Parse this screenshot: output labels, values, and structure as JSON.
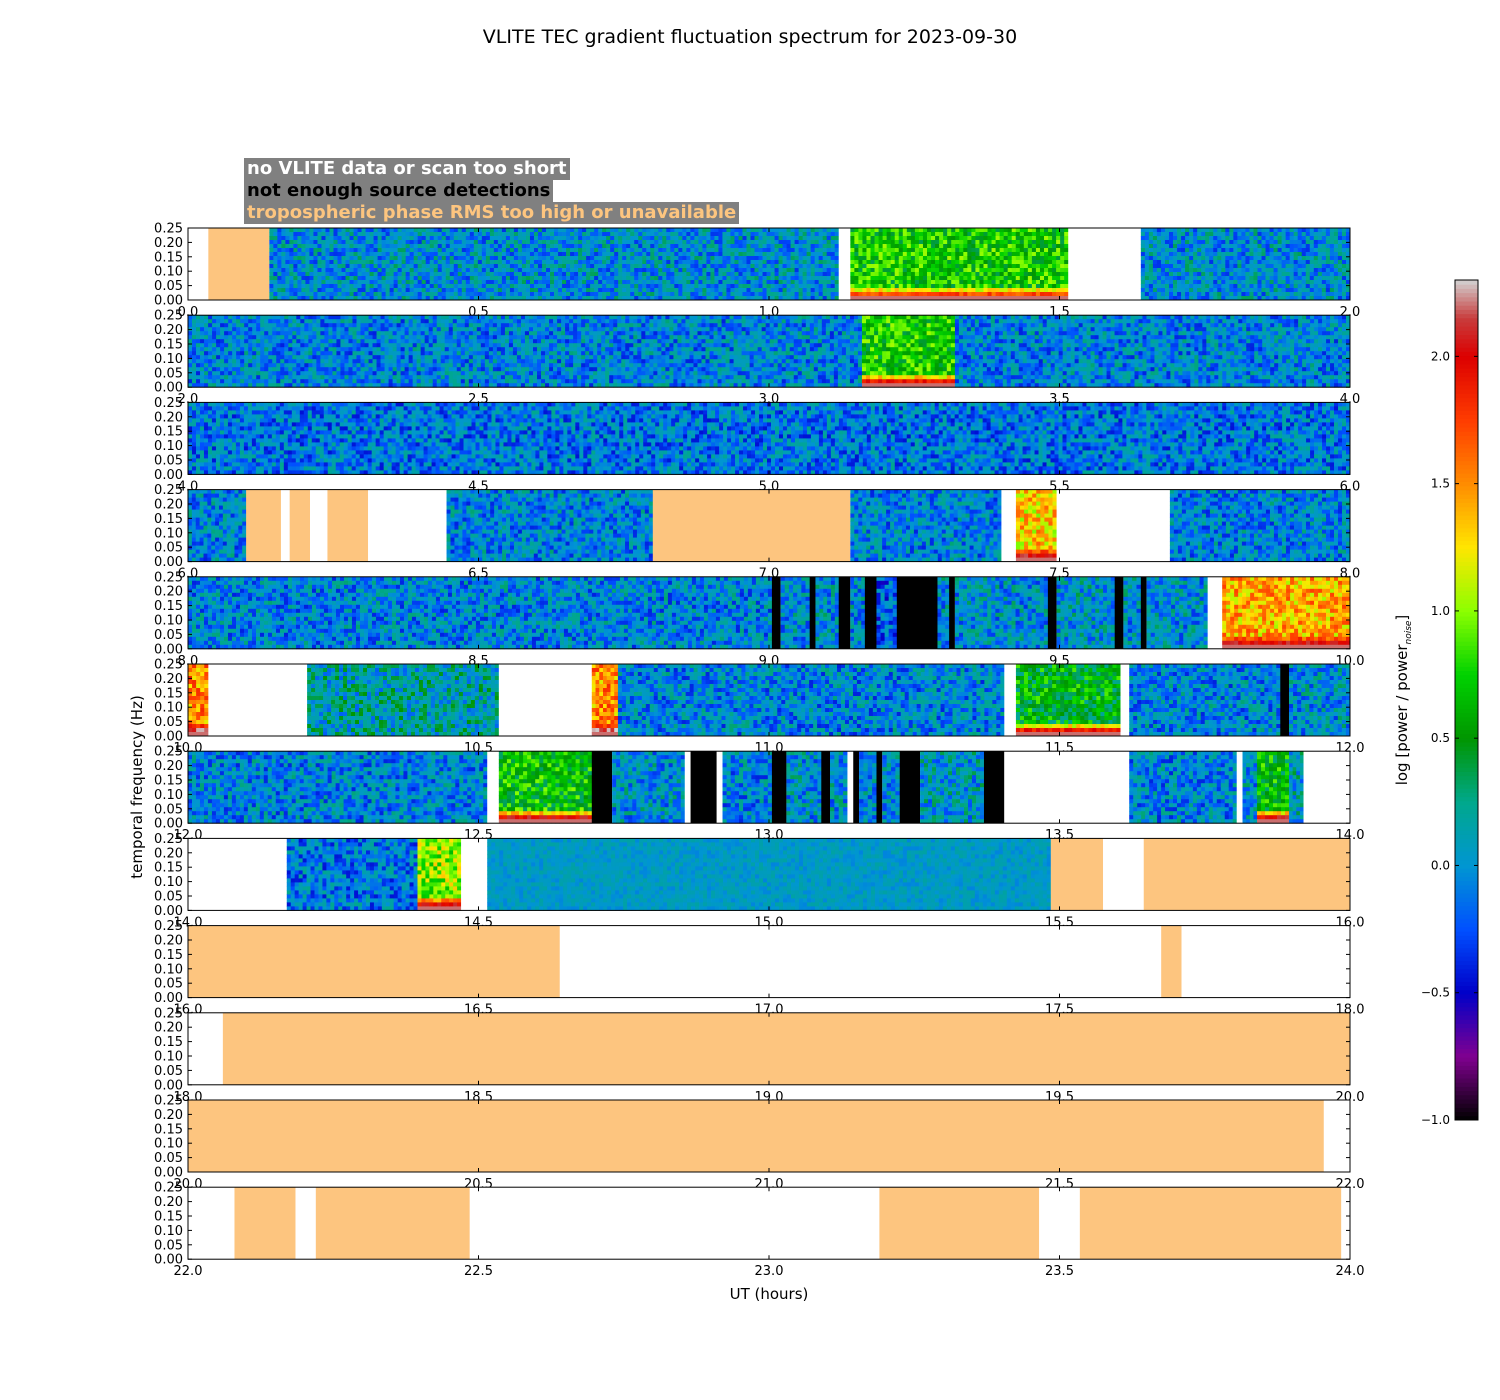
{
  "chart_data": {
    "type": "heatmap",
    "title": "VLITE TEC gradient fluctuation spectrum for 2023-09-30",
    "xlabel": "UT (hours)",
    "ylabel": "temporal frequency (Hz)",
    "ylim": [
      0,
      0.25
    ],
    "yticks": [
      "0.00",
      "0.05",
      "0.10",
      "0.15",
      "0.20",
      "0.25"
    ],
    "colorbar": {
      "label": "log [power / power",
      "label_sub": "noise",
      "label_end": "]",
      "range": [
        -1.0,
        2.3
      ],
      "ticks": [
        "−1.0",
        "−0.5",
        "0.0",
        "0.5",
        "1.0",
        "1.5",
        "2.0"
      ],
      "tick_values": [
        -1.0,
        -0.5,
        0.0,
        0.5,
        1.0,
        1.5,
        2.0
      ]
    },
    "legend": [
      {
        "label": "no VLITE data or scan too short",
        "color": "#ffffff"
      },
      {
        "label": "not enough source detections",
        "color": "#000000"
      },
      {
        "label": "tropospheric phase RMS too high or unavailable",
        "color": "#fdc57f"
      }
    ],
    "category_colors": {
      "nodata": "#ffffff",
      "nodet": "#000000",
      "tropo": "#fdc57f"
    },
    "panels": [
      {
        "xrange": [
          0,
          2
        ],
        "xticks": [
          "0.0",
          "0.5",
          "1.0",
          "1.5",
          "2.0"
        ],
        "segments": [
          {
            "s": 0.0,
            "e": 0.035,
            "k": "nodata"
          },
          {
            "s": 0.035,
            "e": 0.14,
            "k": "tropo"
          },
          {
            "s": 0.14,
            "e": 1.12,
            "k": "data",
            "lvl": 0.0
          },
          {
            "s": 1.12,
            "e": 1.14,
            "k": "nodata"
          },
          {
            "s": 1.14,
            "e": 1.515,
            "k": "data",
            "lvl": 0.7,
            "low": 1.7
          },
          {
            "s": 1.515,
            "e": 1.64,
            "k": "nodata"
          },
          {
            "s": 1.64,
            "e": 2.0,
            "k": "data",
            "lvl": 0.0
          }
        ]
      },
      {
        "xrange": [
          2,
          4
        ],
        "xticks": [
          "2.0",
          "2.5",
          "3.0",
          "3.5",
          "4.0"
        ],
        "segments": [
          {
            "s": 2.0,
            "e": 3.16,
            "k": "data",
            "lvl": -0.05
          },
          {
            "s": 3.16,
            "e": 3.32,
            "k": "data",
            "lvl": 0.7,
            "low": 1.9
          },
          {
            "s": 3.32,
            "e": 4.0,
            "k": "data",
            "lvl": -0.05
          }
        ]
      },
      {
        "xrange": [
          4,
          6
        ],
        "xticks": [
          "4.0",
          "4.5",
          "5.0",
          "5.5",
          "6.0"
        ],
        "segments": [
          {
            "s": 4.0,
            "e": 6.0,
            "k": "data",
            "lvl": -0.1
          }
        ]
      },
      {
        "xrange": [
          6,
          8
        ],
        "xticks": [
          "6.0",
          "6.5",
          "7.0",
          "7.5",
          "8.0"
        ],
        "segments": [
          {
            "s": 6.0,
            "e": 6.1,
            "k": "data",
            "lvl": -0.05
          },
          {
            "s": 6.1,
            "e": 6.16,
            "k": "tropo"
          },
          {
            "s": 6.16,
            "e": 6.175,
            "k": "nodata"
          },
          {
            "s": 6.175,
            "e": 6.21,
            "k": "tropo"
          },
          {
            "s": 6.21,
            "e": 6.24,
            "k": "nodata"
          },
          {
            "s": 6.24,
            "e": 6.31,
            "k": "tropo"
          },
          {
            "s": 6.31,
            "e": 6.445,
            "k": "nodata"
          },
          {
            "s": 6.445,
            "e": 6.8,
            "k": "data",
            "lvl": -0.05
          },
          {
            "s": 6.8,
            "e": 7.14,
            "k": "tropo"
          },
          {
            "s": 7.14,
            "e": 7.4,
            "k": "data",
            "lvl": -0.05
          },
          {
            "s": 7.4,
            "e": 7.425,
            "k": "nodata"
          },
          {
            "s": 7.425,
            "e": 7.495,
            "k": "data",
            "lvl": 1.3,
            "low": 2.1
          },
          {
            "s": 7.495,
            "e": 7.69,
            "k": "nodata"
          },
          {
            "s": 7.69,
            "e": 8.0,
            "k": "data",
            "lvl": -0.05
          }
        ]
      },
      {
        "xrange": [
          8,
          10
        ],
        "xticks": [
          "8.0",
          "8.5",
          "9.0",
          "9.5",
          "10.0"
        ],
        "segments": [
          {
            "s": 8.0,
            "e": 9.005,
            "k": "data",
            "lvl": -0.05
          },
          {
            "s": 9.005,
            "e": 9.02,
            "k": "nodet"
          },
          {
            "s": 9.02,
            "e": 9.07,
            "k": "data",
            "lvl": 0.0
          },
          {
            "s": 9.07,
            "e": 9.08,
            "k": "nodet"
          },
          {
            "s": 9.08,
            "e": 9.12,
            "k": "data",
            "lvl": 0.0
          },
          {
            "s": 9.12,
            "e": 9.14,
            "k": "nodet"
          },
          {
            "s": 9.14,
            "e": 9.165,
            "k": "data",
            "lvl": 0.0
          },
          {
            "s": 9.165,
            "e": 9.185,
            "k": "nodet"
          },
          {
            "s": 9.185,
            "e": 9.22,
            "k": "data",
            "lvl": -0.2
          },
          {
            "s": 9.22,
            "e": 9.29,
            "k": "nodet"
          },
          {
            "s": 9.29,
            "e": 9.31,
            "k": "data",
            "lvl": 0.0
          },
          {
            "s": 9.31,
            "e": 9.32,
            "k": "nodet"
          },
          {
            "s": 9.32,
            "e": 9.48,
            "k": "data",
            "lvl": 0.0
          },
          {
            "s": 9.48,
            "e": 9.495,
            "k": "nodet"
          },
          {
            "s": 9.495,
            "e": 9.595,
            "k": "data",
            "lvl": 0.05
          },
          {
            "s": 9.595,
            "e": 9.61,
            "k": "nodet"
          },
          {
            "s": 9.61,
            "e": 9.64,
            "k": "data",
            "lvl": 0.0
          },
          {
            "s": 9.64,
            "e": 9.65,
            "k": "nodet"
          },
          {
            "s": 9.65,
            "e": 9.755,
            "k": "data",
            "lvl": 0.0
          },
          {
            "s": 9.755,
            "e": 9.78,
            "k": "nodata"
          },
          {
            "s": 9.78,
            "e": 10.0,
            "k": "data",
            "lvl": 1.4,
            "low": 2.0
          }
        ]
      },
      {
        "xrange": [
          10,
          12
        ],
        "xticks": [
          "10.0",
          "10.5",
          "11.0",
          "11.5",
          "12.0"
        ],
        "segments": [
          {
            "s": 10.0,
            "e": 10.035,
            "k": "data",
            "lvl": 1.5,
            "low": 2.2
          },
          {
            "s": 10.035,
            "e": 10.205,
            "k": "nodata"
          },
          {
            "s": 10.205,
            "e": 10.535,
            "k": "data",
            "lvl": 0.15
          },
          {
            "s": 10.535,
            "e": 10.695,
            "k": "nodata"
          },
          {
            "s": 10.695,
            "e": 10.74,
            "k": "data",
            "lvl": 1.5,
            "low": 2.2
          },
          {
            "s": 10.74,
            "e": 11.405,
            "k": "data",
            "lvl": -0.05
          },
          {
            "s": 11.405,
            "e": 11.425,
            "k": "nodata"
          },
          {
            "s": 11.425,
            "e": 11.605,
            "k": "data",
            "lvl": 0.55,
            "low": 1.9
          },
          {
            "s": 11.605,
            "e": 11.62,
            "k": "nodata"
          },
          {
            "s": 11.62,
            "e": 11.88,
            "k": "data",
            "lvl": -0.05
          },
          {
            "s": 11.88,
            "e": 11.895,
            "k": "nodet"
          },
          {
            "s": 11.895,
            "e": 12.0,
            "k": "data",
            "lvl": 0.0
          }
        ]
      },
      {
        "xrange": [
          12,
          14
        ],
        "xticks": [
          "12.0",
          "12.5",
          "13.0",
          "13.5",
          "14.0"
        ],
        "segments": [
          {
            "s": 12.0,
            "e": 12.515,
            "k": "data",
            "lvl": -0.05
          },
          {
            "s": 12.515,
            "e": 12.535,
            "k": "nodata"
          },
          {
            "s": 12.535,
            "e": 12.695,
            "k": "data",
            "lvl": 0.65,
            "low": 2.0
          },
          {
            "s": 12.695,
            "e": 12.73,
            "k": "nodet"
          },
          {
            "s": 12.73,
            "e": 12.855,
            "k": "data",
            "lvl": 0.0
          },
          {
            "s": 12.855,
            "e": 12.865,
            "k": "nodata"
          },
          {
            "s": 12.865,
            "e": 12.91,
            "k": "nodet"
          },
          {
            "s": 12.91,
            "e": 12.92,
            "k": "nodata"
          },
          {
            "s": 12.92,
            "e": 13.005,
            "k": "data",
            "lvl": -0.05
          },
          {
            "s": 13.005,
            "e": 13.03,
            "k": "nodet"
          },
          {
            "s": 13.03,
            "e": 13.09,
            "k": "data",
            "lvl": 0.0
          },
          {
            "s": 13.09,
            "e": 13.105,
            "k": "nodet"
          },
          {
            "s": 13.105,
            "e": 13.135,
            "k": "data",
            "lvl": 0.0
          },
          {
            "s": 13.135,
            "e": 13.145,
            "k": "nodata"
          },
          {
            "s": 13.145,
            "e": 13.155,
            "k": "nodet"
          },
          {
            "s": 13.155,
            "e": 13.185,
            "k": "data",
            "lvl": 0.0
          },
          {
            "s": 13.185,
            "e": 13.195,
            "k": "nodet"
          },
          {
            "s": 13.195,
            "e": 13.225,
            "k": "data",
            "lvl": 0.0
          },
          {
            "s": 13.225,
            "e": 13.26,
            "k": "nodet"
          },
          {
            "s": 13.26,
            "e": 13.37,
            "k": "data",
            "lvl": 0.05
          },
          {
            "s": 13.37,
            "e": 13.405,
            "k": "nodet"
          },
          {
            "s": 13.405,
            "e": 13.62,
            "k": "nodata"
          },
          {
            "s": 13.62,
            "e": 13.805,
            "k": "data",
            "lvl": -0.05
          },
          {
            "s": 13.805,
            "e": 13.815,
            "k": "nodata"
          },
          {
            "s": 13.815,
            "e": 13.84,
            "k": "data",
            "lvl": 0.0
          },
          {
            "s": 13.84,
            "e": 13.895,
            "k": "data",
            "lvl": 0.6,
            "low": 2.0
          },
          {
            "s": 13.895,
            "e": 13.92,
            "k": "data",
            "lvl": 0.1
          },
          {
            "s": 13.92,
            "e": 14.0,
            "k": "nodata"
          }
        ]
      },
      {
        "xrange": [
          14,
          16
        ],
        "xticks": [
          "14.0",
          "14.5",
          "15.0",
          "15.5",
          "16.0"
        ],
        "segments": [
          {
            "s": 14.0,
            "e": 14.17,
            "k": "nodata"
          },
          {
            "s": 14.17,
            "e": 14.395,
            "k": "data",
            "lvl": -0.1
          },
          {
            "s": 14.395,
            "e": 14.47,
            "k": "data",
            "lvl": 1.0,
            "low": 2.0
          },
          {
            "s": 14.47,
            "e": 14.515,
            "k": "nodata"
          },
          {
            "s": 14.515,
            "e": 15.485,
            "k": "data",
            "lvl": 0.05,
            "smooth": true
          },
          {
            "s": 15.485,
            "e": 15.575,
            "k": "tropo"
          },
          {
            "s": 15.575,
            "e": 15.645,
            "k": "nodata"
          },
          {
            "s": 15.645,
            "e": 16.0,
            "k": "tropo"
          }
        ]
      },
      {
        "xrange": [
          16,
          18
        ],
        "xticks": [
          "16.0",
          "16.5",
          "17.0",
          "17.5",
          "18.0"
        ],
        "segments": [
          {
            "s": 16.0,
            "e": 16.64,
            "k": "tropo"
          },
          {
            "s": 16.64,
            "e": 17.675,
            "k": "nodata"
          },
          {
            "s": 17.675,
            "e": 17.71,
            "k": "tropo"
          },
          {
            "s": 17.71,
            "e": 18.0,
            "k": "nodata"
          }
        ]
      },
      {
        "xrange": [
          18,
          20
        ],
        "xticks": [
          "18.0",
          "18.5",
          "19.0",
          "19.5",
          "20.0"
        ],
        "segments": [
          {
            "s": 18.0,
            "e": 18.06,
            "k": "nodata"
          },
          {
            "s": 18.06,
            "e": 20.0,
            "k": "tropo"
          }
        ]
      },
      {
        "xrange": [
          20,
          22
        ],
        "xticks": [
          "20.0",
          "20.5",
          "21.0",
          "21.5",
          "22.0"
        ],
        "segments": [
          {
            "s": 20.0,
            "e": 21.955,
            "k": "tropo"
          },
          {
            "s": 21.955,
            "e": 22.0,
            "k": "nodata"
          }
        ]
      },
      {
        "xrange": [
          22,
          24
        ],
        "xticks": [
          "22.0",
          "22.5",
          "23.0",
          "23.5",
          "24.0"
        ],
        "segments": [
          {
            "s": 22.0,
            "e": 22.08,
            "k": "nodata"
          },
          {
            "s": 22.08,
            "e": 22.185,
            "k": "tropo"
          },
          {
            "s": 22.185,
            "e": 22.22,
            "k": "nodata"
          },
          {
            "s": 22.22,
            "e": 22.485,
            "k": "tropo"
          },
          {
            "s": 22.485,
            "e": 23.19,
            "k": "nodata"
          },
          {
            "s": 23.19,
            "e": 23.465,
            "k": "tropo"
          },
          {
            "s": 23.465,
            "e": 23.535,
            "k": "nodata"
          },
          {
            "s": 23.535,
            "e": 23.985,
            "k": "tropo"
          },
          {
            "s": 23.985,
            "e": 24.0,
            "k": "nodata"
          }
        ]
      }
    ]
  }
}
